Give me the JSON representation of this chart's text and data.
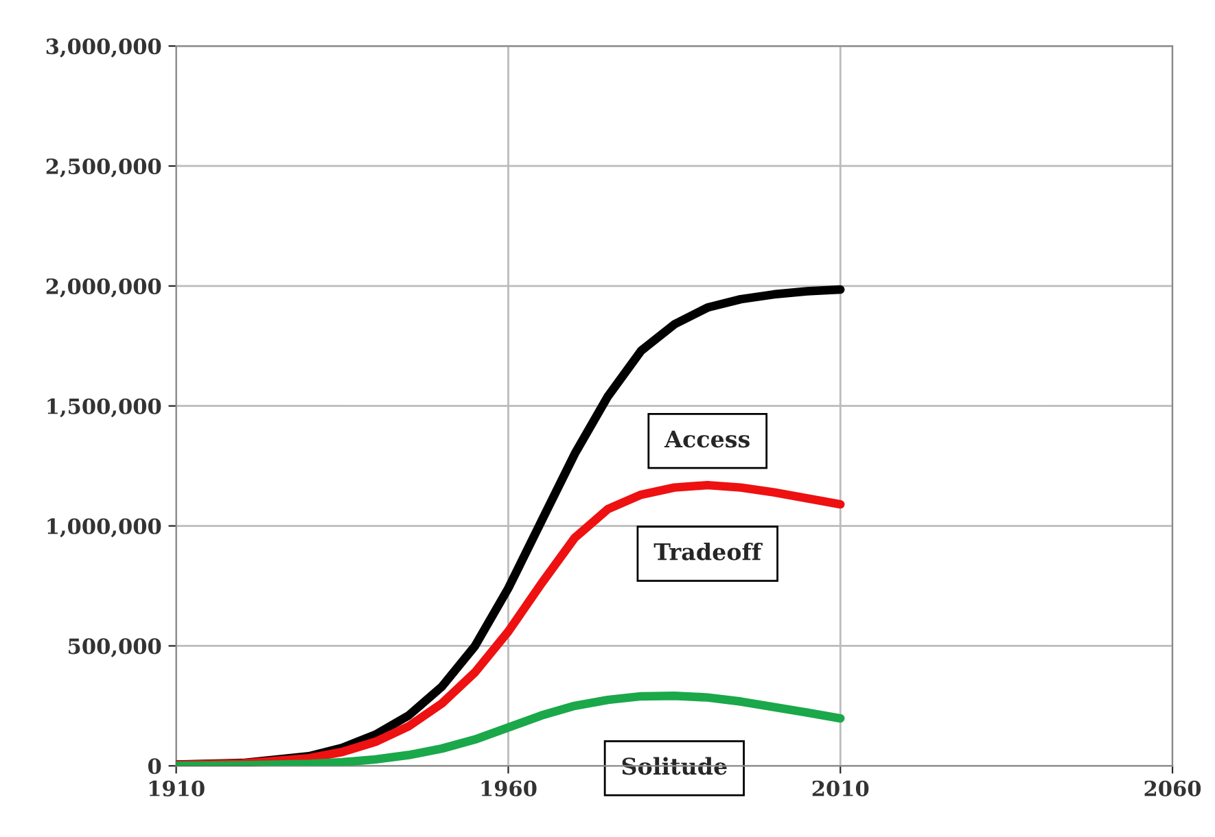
{
  "chart_data": {
    "type": "line",
    "x": [
      1910,
      1920,
      1930,
      1935,
      1940,
      1945,
      1950,
      1955,
      1960,
      1965,
      1970,
      1975,
      1980,
      1985,
      1990,
      1995,
      2000,
      2005,
      2010
    ],
    "series": [
      {
        "name": "Access",
        "color": "#000000",
        "values": [
          5000,
          12000,
          40000,
          75000,
          130000,
          210000,
          330000,
          500000,
          740000,
          1020000,
          1300000,
          1540000,
          1730000,
          1840000,
          1910000,
          1945000,
          1965000,
          1978000,
          1985000
        ]
      },
      {
        "name": "Tradeoff",
        "color": "#ee1111",
        "values": [
          4000,
          10000,
          32000,
          58000,
          100000,
          165000,
          260000,
          390000,
          560000,
          760000,
          950000,
          1070000,
          1130000,
          1160000,
          1170000,
          1160000,
          1140000,
          1115000,
          1090000
        ]
      },
      {
        "name": "Solitude",
        "color": "#1aa84a",
        "values": [
          0,
          2000,
          8000,
          15000,
          27000,
          45000,
          72000,
          110000,
          160000,
          210000,
          250000,
          275000,
          290000,
          292000,
          285000,
          268000,
          245000,
          222000,
          198000
        ]
      }
    ],
    "xlim": [
      1910,
      2060
    ],
    "xticks": [
      1910,
      1960,
      2010,
      2060
    ],
    "ylim": [
      0,
      3000000
    ],
    "yticks": [
      {
        "value": 0,
        "label": "0"
      },
      {
        "value": 500000,
        "label": "500,000"
      },
      {
        "value": 1000000,
        "label": "1,000,000"
      },
      {
        "value": 1500000,
        "label": "1,500,000"
      },
      {
        "value": 2000000,
        "label": "2,000,000"
      },
      {
        "value": 2500000,
        "label": "2,500,000"
      },
      {
        "value": 3000000,
        "label": "3,000,000"
      }
    ],
    "grid": true,
    "legend": false,
    "marker": "none",
    "line_style": "solid"
  }
}
